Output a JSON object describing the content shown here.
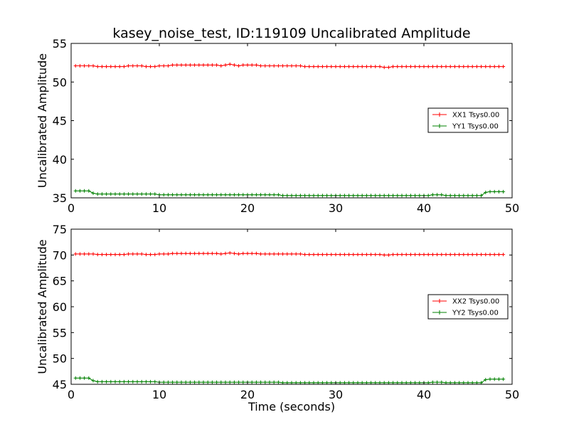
{
  "figure_title": "kasey_noise_test, ID:119109 Uncalibrated Amplitude",
  "chart_data": [
    {
      "type": "line",
      "title": "kasey_noise_test, ID:119109 Uncalibrated Amplitude",
      "xlabel": "",
      "ylabel": "Uncalibrated Amplitude",
      "xlim": [
        0,
        50
      ],
      "ylim": [
        35,
        55
      ],
      "xticks": [
        "0",
        "10",
        "20",
        "30",
        "40",
        "50"
      ],
      "yticks": [
        "35",
        "40",
        "45",
        "50",
        "55"
      ],
      "grid": false,
      "legend_position": "center-right",
      "x_start": 0.5,
      "x_step": 0.5,
      "series": [
        {
          "name": "XX1 Tsys0.00",
          "color": "#ff0000",
          "marker": "+",
          "values": [
            52.1,
            52.1,
            52.1,
            52.1,
            52.1,
            52.0,
            52.0,
            52.0,
            52.0,
            52.0,
            52.0,
            52.0,
            52.1,
            52.1,
            52.1,
            52.1,
            52.0,
            52.0,
            52.0,
            52.1,
            52.1,
            52.1,
            52.2,
            52.2,
            52.2,
            52.2,
            52.2,
            52.2,
            52.2,
            52.2,
            52.2,
            52.2,
            52.2,
            52.1,
            52.2,
            52.3,
            52.2,
            52.1,
            52.2,
            52.2,
            52.2,
            52.2,
            52.1,
            52.1,
            52.1,
            52.1,
            52.1,
            52.1,
            52.1,
            52.1,
            52.1,
            52.1,
            52.0,
            52.0,
            52.0,
            52.0,
            52.0,
            52.0,
            52.0,
            52.0,
            52.0,
            52.0,
            52.0,
            52.0,
            52.0,
            52.0,
            52.0,
            52.0,
            52.0,
            52.0,
            51.9,
            51.9,
            52.0,
            52.0,
            52.0,
            52.0,
            52.0,
            52.0,
            52.0,
            52.0,
            52.0,
            52.0,
            52.0,
            52.0,
            52.0,
            52.0,
            52.0,
            52.0,
            52.0,
            52.0,
            52.0,
            52.0,
            52.0,
            52.0,
            52.0,
            52.0,
            52.0,
            52.0
          ]
        },
        {
          "name": "YY1 Tsys0.00",
          "color": "#008000",
          "marker": "+",
          "values": [
            35.9,
            35.9,
            35.9,
            35.9,
            35.6,
            35.5,
            35.5,
            35.5,
            35.5,
            35.5,
            35.5,
            35.5,
            35.5,
            35.5,
            35.5,
            35.5,
            35.5,
            35.5,
            35.5,
            35.4,
            35.4,
            35.4,
            35.4,
            35.4,
            35.4,
            35.4,
            35.4,
            35.4,
            35.4,
            35.4,
            35.4,
            35.4,
            35.4,
            35.4,
            35.4,
            35.4,
            35.4,
            35.4,
            35.4,
            35.4,
            35.4,
            35.4,
            35.4,
            35.4,
            35.4,
            35.4,
            35.4,
            35.3,
            35.3,
            35.3,
            35.3,
            35.3,
            35.3,
            35.3,
            35.3,
            35.3,
            35.3,
            35.3,
            35.3,
            35.3,
            35.3,
            35.3,
            35.3,
            35.3,
            35.3,
            35.3,
            35.3,
            35.3,
            35.3,
            35.3,
            35.3,
            35.3,
            35.3,
            35.3,
            35.3,
            35.3,
            35.3,
            35.3,
            35.3,
            35.3,
            35.3,
            35.4,
            35.4,
            35.4,
            35.3,
            35.3,
            35.3,
            35.3,
            35.3,
            35.3,
            35.3,
            35.3,
            35.3,
            35.7,
            35.8,
            35.8,
            35.8,
            35.8
          ]
        }
      ]
    },
    {
      "type": "line",
      "title": "",
      "xlabel": "Time (seconds)",
      "ylabel": "Uncalibrated Amplitude",
      "xlim": [
        0,
        50
      ],
      "ylim": [
        45,
        75
      ],
      "xticks": [
        "0",
        "10",
        "20",
        "30",
        "40",
        "50"
      ],
      "yticks": [
        "45",
        "50",
        "55",
        "60",
        "65",
        "70",
        "75"
      ],
      "grid": false,
      "legend_position": "center-right",
      "x_start": 0.5,
      "x_step": 0.5,
      "series": [
        {
          "name": "XX2 Tsys0.00",
          "color": "#ff0000",
          "marker": "+",
          "values": [
            70.2,
            70.2,
            70.2,
            70.2,
            70.2,
            70.1,
            70.1,
            70.1,
            70.1,
            70.1,
            70.1,
            70.1,
            70.2,
            70.2,
            70.2,
            70.2,
            70.1,
            70.1,
            70.1,
            70.2,
            70.2,
            70.2,
            70.3,
            70.3,
            70.3,
            70.3,
            70.3,
            70.3,
            70.3,
            70.3,
            70.3,
            70.3,
            70.3,
            70.2,
            70.3,
            70.4,
            70.3,
            70.2,
            70.3,
            70.3,
            70.3,
            70.3,
            70.2,
            70.2,
            70.2,
            70.2,
            70.2,
            70.2,
            70.2,
            70.2,
            70.2,
            70.2,
            70.1,
            70.1,
            70.1,
            70.1,
            70.1,
            70.1,
            70.1,
            70.1,
            70.1,
            70.1,
            70.1,
            70.1,
            70.1,
            70.1,
            70.1,
            70.1,
            70.1,
            70.1,
            70.0,
            70.0,
            70.1,
            70.1,
            70.1,
            70.1,
            70.1,
            70.1,
            70.1,
            70.1,
            70.1,
            70.1,
            70.1,
            70.1,
            70.1,
            70.1,
            70.1,
            70.1,
            70.1,
            70.1,
            70.1,
            70.1,
            70.1,
            70.1,
            70.1,
            70.1,
            70.1,
            70.1
          ]
        },
        {
          "name": "YY2 Tsys0.00",
          "color": "#008000",
          "marker": "+",
          "values": [
            46.2,
            46.2,
            46.2,
            46.2,
            45.7,
            45.5,
            45.5,
            45.5,
            45.5,
            45.5,
            45.5,
            45.5,
            45.5,
            45.5,
            45.5,
            45.5,
            45.5,
            45.5,
            45.5,
            45.4,
            45.4,
            45.4,
            45.4,
            45.4,
            45.4,
            45.4,
            45.4,
            45.4,
            45.4,
            45.4,
            45.4,
            45.4,
            45.4,
            45.4,
            45.4,
            45.4,
            45.4,
            45.4,
            45.4,
            45.4,
            45.4,
            45.4,
            45.4,
            45.4,
            45.4,
            45.4,
            45.4,
            45.3,
            45.3,
            45.3,
            45.3,
            45.3,
            45.3,
            45.3,
            45.3,
            45.3,
            45.3,
            45.3,
            45.3,
            45.3,
            45.3,
            45.3,
            45.3,
            45.3,
            45.3,
            45.3,
            45.3,
            45.3,
            45.3,
            45.3,
            45.3,
            45.3,
            45.3,
            45.3,
            45.3,
            45.3,
            45.3,
            45.3,
            45.3,
            45.3,
            45.3,
            45.4,
            45.4,
            45.4,
            45.3,
            45.3,
            45.3,
            45.3,
            45.3,
            45.3,
            45.3,
            45.3,
            45.3,
            45.9,
            46.0,
            46.0,
            46.0,
            46.0
          ]
        }
      ]
    }
  ]
}
